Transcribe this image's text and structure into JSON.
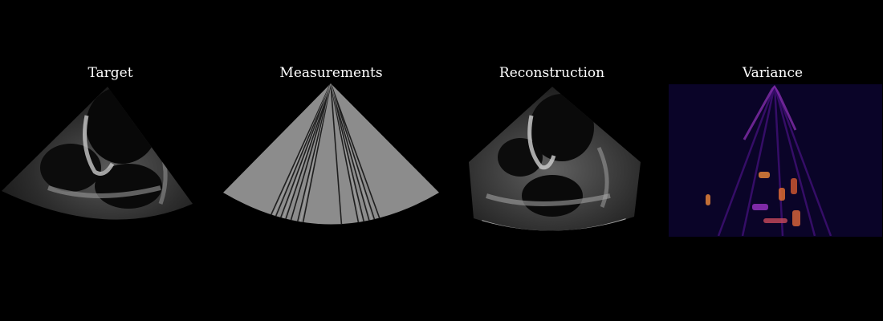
{
  "figure": {
    "panels": [
      {
        "title": "Target"
      },
      {
        "title": "Measurements"
      },
      {
        "title": "Reconstruction"
      },
      {
        "title": "Variance"
      }
    ]
  },
  "colors": {
    "background": "#000000",
    "title_text": "#ffffff",
    "measurement_fill": "#8c8c8c",
    "variance_background": "#0a0428",
    "variance_low": "#3a0f6e",
    "variance_mid": "#8b2fb5",
    "variance_high": "#f08a3a"
  },
  "icons": {
    "target": "ultrasound-sector-image",
    "measurements": "masked-scanline-sector",
    "reconstruction": "ultrasound-sector-image",
    "variance": "variance-heatmap"
  }
}
